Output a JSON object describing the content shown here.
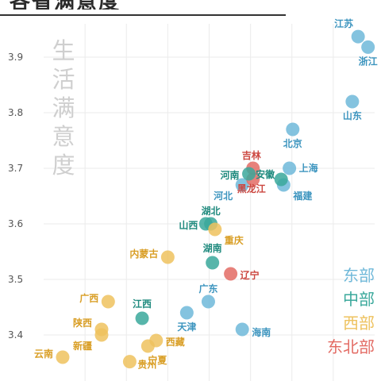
{
  "title": "各省满意度",
  "chart_data": {
    "type": "scatter",
    "ylabel": "生活满意度",
    "ylim": [
      3.355,
      4.0
    ],
    "y_ticks": [
      3.4,
      3.5,
      3.6,
      3.7,
      3.8,
      3.9
    ],
    "legend": [
      {
        "name": "东部",
        "color": "#6fb8d9"
      },
      {
        "name": "中部",
        "color": "#3aa89b"
      },
      {
        "name": "西部",
        "color": "#eec25e"
      },
      {
        "name": "东北部",
        "color": "#e36b64"
      }
    ],
    "points": [
      {
        "label": "江苏",
        "x": 3.8,
        "y": 3.937,
        "group": "东部"
      },
      {
        "label": "浙江",
        "x": 3.92,
        "y": 3.918,
        "group": "东部"
      },
      {
        "label": "山东",
        "x": 3.73,
        "y": 3.82,
        "group": "东部"
      },
      {
        "label": "北京",
        "x": 3.01,
        "y": 3.77,
        "group": "东部"
      },
      {
        "label": "上海",
        "x": 2.97,
        "y": 3.7,
        "group": "东部"
      },
      {
        "label": "福建",
        "x": 2.9,
        "y": 3.67,
        "group": "东部"
      },
      {
        "label": "河北",
        "x": 2.4,
        "y": 3.67,
        "group": "东部"
      },
      {
        "label": "天津",
        "x": 1.73,
        "y": 3.44,
        "group": "东部"
      },
      {
        "label": "广东",
        "x": 1.99,
        "y": 3.46,
        "group": "东部"
      },
      {
        "label": "海南",
        "x": 2.4,
        "y": 3.41,
        "group": "东部"
      },
      {
        "label": "吉林",
        "x": 2.53,
        "y": 3.7,
        "group": "东北部"
      },
      {
        "label": "黑龙江",
        "x": 2.53,
        "y": 3.68,
        "group": "东北部"
      },
      {
        "label": "辽宁",
        "x": 2.26,
        "y": 3.51,
        "group": "东北部"
      },
      {
        "label": "河南",
        "x": 2.48,
        "y": 3.69,
        "group": "中部"
      },
      {
        "label": "安徽",
        "x": 2.87,
        "y": 3.68,
        "group": "中部"
      },
      {
        "label": "湖北",
        "x": 2.02,
        "y": 3.6,
        "group": "中部"
      },
      {
        "label": "山西",
        "x": 1.96,
        "y": 3.6,
        "group": "中部"
      },
      {
        "label": "湖南",
        "x": 2.04,
        "y": 3.53,
        "group": "中部"
      },
      {
        "label": "江西",
        "x": 1.19,
        "y": 3.43,
        "group": "中部"
      },
      {
        "label": "重庆",
        "x": 2.07,
        "y": 3.59,
        "group": "西部"
      },
      {
        "label": "内蒙古",
        "x": 1.5,
        "y": 3.54,
        "group": "西部"
      },
      {
        "label": "广西",
        "x": 0.78,
        "y": 3.46,
        "group": "西部"
      },
      {
        "label": "陕西",
        "x": 0.7,
        "y": 3.41,
        "group": "西部"
      },
      {
        "label": "新疆",
        "x": 0.7,
        "y": 3.4,
        "group": "西部"
      },
      {
        "label": "西藏",
        "x": 1.36,
        "y": 3.39,
        "group": "西部"
      },
      {
        "label": "宁夏",
        "x": 1.26,
        "y": 3.38,
        "group": "西部"
      },
      {
        "label": "云南",
        "x": 0.23,
        "y": 3.36,
        "group": "西部"
      },
      {
        "label": "贵州",
        "x": 1.04,
        "y": 3.352,
        "group": "西部"
      }
    ]
  }
}
